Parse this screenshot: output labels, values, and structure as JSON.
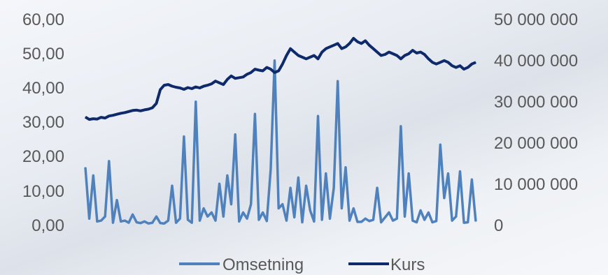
{
  "chart_data": {
    "type": "line",
    "title": "",
    "legend_position": "bottom",
    "grid": false,
    "left_axis": {
      "ylim": [
        0,
        60
      ],
      "ticks": [
        "0,00",
        "10,00",
        "20,00",
        "30,00",
        "40,00",
        "50,00",
        "60,00"
      ]
    },
    "right_axis": {
      "ylim": [
        0,
        50000000
      ],
      "ticks": [
        "0",
        "10 000 000",
        "20 000 000",
        "30 000 000",
        "40 000 000",
        "50 000 000"
      ]
    },
    "x_count": 100,
    "series": [
      {
        "name": "Omsetning",
        "axis": "right",
        "color": "#4f81bd",
        "values": [
          14000000,
          1500000,
          12000000,
          800000,
          1000000,
          2000000,
          15500000,
          500000,
          6000000,
          800000,
          1000000,
          500000,
          2500000,
          600000,
          400000,
          800000,
          300000,
          500000,
          2000000,
          400000,
          300000,
          1000000,
          9500000,
          500000,
          1500000,
          21500000,
          1200000,
          500000,
          30000000,
          1000000,
          4000000,
          2000000,
          3000000,
          1000000,
          10000000,
          2000000,
          12000000,
          5000000,
          22000000,
          800000,
          3000000,
          1500000,
          5000000,
          27000000,
          1200000,
          3000000,
          900000,
          13500000,
          40000000,
          4000000,
          5000000,
          1000000,
          9000000,
          1800000,
          11500000,
          600000,
          9500000,
          3500000,
          800000,
          26500000,
          1200000,
          12500000,
          1500000,
          9000000,
          35000000,
          4000000,
          14000000,
          1000000,
          4000000,
          700000,
          700000,
          1500000,
          900000,
          1200000,
          9000000,
          600000,
          1800000,
          3000000,
          1000000,
          1500000,
          24000000,
          2000000,
          12500000,
          1000000,
          600000,
          3500000,
          1200000,
          3000000,
          600000,
          900000,
          19500000,
          6500000,
          12500000,
          1000000,
          2000000,
          13000000,
          500000,
          600000,
          11000000,
          800000
        ]
      },
      {
        "name": "Kurs",
        "axis": "left",
        "color": "#0f2a6b",
        "values": [
          31.5,
          30.8,
          31.0,
          30.9,
          31.4,
          31.2,
          31.8,
          32.0,
          32.3,
          32.6,
          32.8,
          33.1,
          33.4,
          33.5,
          33.3,
          33.6,
          33.8,
          34.2,
          35.5,
          39.5,
          40.8,
          41.0,
          40.5,
          40.2,
          40.0,
          39.6,
          40.1,
          39.8,
          40.3,
          40.0,
          40.5,
          40.8,
          41.2,
          42.0,
          41.5,
          41.0,
          42.5,
          43.5,
          42.8,
          43.0,
          43.2,
          44.0,
          44.5,
          45.5,
          45.2,
          45.0,
          46.0,
          45.5,
          44.5,
          45.0,
          47.0,
          49.5,
          51.5,
          50.5,
          49.5,
          49.0,
          48.5,
          49.0,
          49.5,
          48.5,
          50.5,
          51.5,
          52.0,
          52.5,
          53.0,
          51.5,
          52.0,
          53.0,
          54.5,
          53.5,
          53.0,
          53.8,
          52.5,
          51.5,
          50.5,
          49.5,
          49.8,
          50.5,
          50.0,
          49.5,
          48.5,
          49.5,
          50.0,
          51.0,
          50.2,
          50.5,
          49.8,
          48.5,
          47.5,
          47.0,
          47.5,
          48.0,
          47.5,
          46.5,
          46.0,
          46.5,
          45.5,
          46.0,
          47.0,
          47.5
        ]
      }
    ]
  }
}
